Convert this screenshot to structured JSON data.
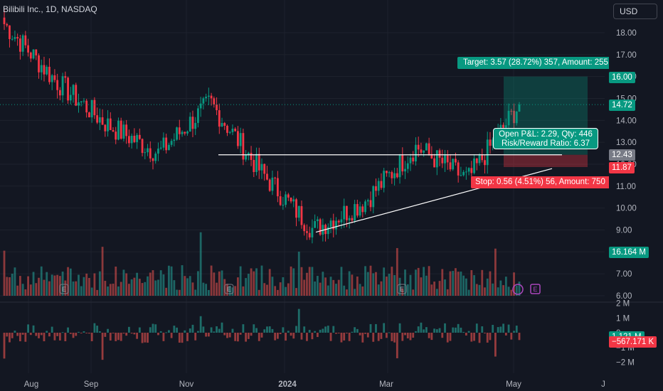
{
  "header": {
    "title": "Bilibili Inc., 1D, NASDAQ",
    "currency": "USD"
  },
  "price_tags": {
    "target": "16.00",
    "last": "14.72",
    "entry": "12.43",
    "stop": "11.87",
    "volume": "16.164 M",
    "indicator_pos": "1.121 M",
    "indicator_neg": "−567.171 K"
  },
  "position": {
    "target_label": "Target: 3.57 (28.72%) 357, Amount: 255",
    "stop_label": "Stop: 0.56 (4.51%) 56, Amount: 750",
    "pnl_line1": "Open P&L: 2.29, Qty: 446",
    "pnl_line2": "Risk/Reward Ratio: 6.37"
  },
  "colors": {
    "up": "#089981",
    "down": "#f23645",
    "volume_up": "#26a69a",
    "volume_down": "#ef5350",
    "background": "#131722",
    "grid": "#1e222d",
    "event_badge": "#ab47bc"
  },
  "chart_data": {
    "type": "candlestick",
    "title": "Bilibili Inc., 1D, NASDAQ",
    "price_axis": {
      "ticks": [
        "18.00",
        "17.00",
        "16.00",
        "15.00",
        "14.00",
        "13.00",
        "12.00",
        "11.00",
        "10.00",
        "9.00",
        "8.00",
        "7.00",
        "6.00"
      ],
      "range": [
        6,
        18.5
      ]
    },
    "oscillator_axis": {
      "ticks": [
        "2 M",
        "1 M",
        "0",
        "−1 M",
        "−2 M"
      ],
      "range": [
        -2.3,
        2.3
      ]
    },
    "time_axis": {
      "labels": [
        "Aug",
        "Sep",
        "Nov",
        "2024",
        "Mar",
        "May",
        "J"
      ]
    },
    "key_points": [
      {
        "date": "2023-07",
        "close": 18.4
      },
      {
        "date": "2023-08",
        "close": 15.8
      },
      {
        "date": "2023-09",
        "close": 13.8
      },
      {
        "date": "2023-10",
        "close": 12.5
      },
      {
        "date": "2023-11",
        "close": 14.8
      },
      {
        "date": "2023-12",
        "close": 11.6
      },
      {
        "date": "2024-01",
        "close": 9.0
      },
      {
        "date": "2024-02",
        "close": 10.3
      },
      {
        "date": "2024-03",
        "close": 12.8
      },
      {
        "date": "2024-04",
        "close": 11.3
      },
      {
        "date": "2024-05",
        "close": 14.72
      }
    ],
    "lines": {
      "resistance": 12.43,
      "trendline_start": 8.9,
      "trendline_end": 11.8
    },
    "position": {
      "entry": 12.43,
      "target": 16.0,
      "stop": 11.87,
      "last": 14.72
    },
    "grid": true
  }
}
